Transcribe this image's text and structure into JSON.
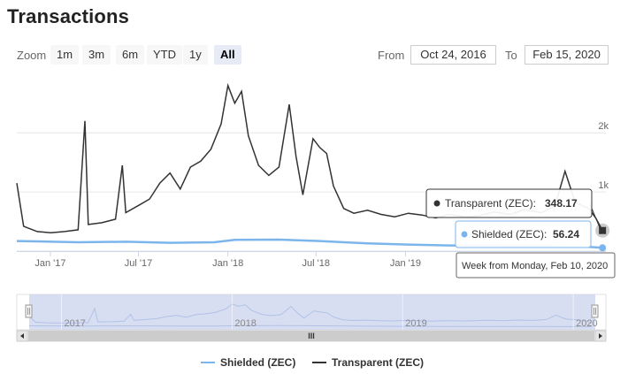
{
  "page_title": "Transactions",
  "toolbar": {
    "zoom_label": "Zoom",
    "zoom_buttons": [
      "1m",
      "3m",
      "6m",
      "YTD",
      "1y",
      "All"
    ],
    "active_zoom": "All",
    "from_label": "From",
    "from_value": "Oct 24, 2016",
    "to_label": "To",
    "to_value": "Feb 15, 2020"
  },
  "tooltip": {
    "transparent_label": "Transparent (ZEC):",
    "transparent_value": "348.17",
    "shielded_label": "Shielded (ZEC):",
    "shielded_value": "56.24",
    "date_text": "Week from Monday, Feb 10, 2020"
  },
  "navigator": {
    "year_labels": [
      "2017",
      "2018",
      "2019",
      "2020"
    ],
    "scroll_grip": "III"
  },
  "legend": [
    "Shielded (ZEC)",
    "Transparent (ZEC)"
  ],
  "colors": {
    "shielded": "#7cb5ec",
    "transparent": "#333333",
    "navigator_fill": "#c9d3ee",
    "grid": "#e6e6e6"
  },
  "chart_data": {
    "type": "line",
    "x_axis": {
      "type": "datetime",
      "tick_labels": [
        "Jan '17",
        "Jul '17",
        "Jan '18",
        "Jul '18",
        "Jan '19"
      ]
    },
    "y_axis": {
      "tick_labels": [
        "1k",
        "2k"
      ],
      "range": [
        0,
        2900
      ],
      "position": "right"
    },
    "grid": true,
    "legend_position": "bottom-center",
    "series": [
      {
        "name": "Transparent (ZEC)",
        "points": [
          [
            "2016-10-24",
            1150
          ],
          [
            "2016-11-07",
            420
          ],
          [
            "2016-12-05",
            330
          ],
          [
            "2017-01-02",
            310
          ],
          [
            "2017-01-30",
            330
          ],
          [
            "2017-02-27",
            360
          ],
          [
            "2017-03-13",
            2200
          ],
          [
            "2017-03-20",
            450
          ],
          [
            "2017-04-17",
            480
          ],
          [
            "2017-05-15",
            540
          ],
          [
            "2017-05-29",
            1450
          ],
          [
            "2017-06-05",
            650
          ],
          [
            "2017-07-03",
            780
          ],
          [
            "2017-07-24",
            880
          ],
          [
            "2017-08-14",
            1150
          ],
          [
            "2017-09-04",
            1320
          ],
          [
            "2017-09-25",
            1050
          ],
          [
            "2017-10-16",
            1420
          ],
          [
            "2017-11-06",
            1520
          ],
          [
            "2017-11-27",
            1720
          ],
          [
            "2017-12-18",
            2150
          ],
          [
            "2018-01-01",
            2800
          ],
          [
            "2018-01-15",
            2500
          ],
          [
            "2018-01-29",
            2700
          ],
          [
            "2018-02-12",
            1950
          ],
          [
            "2018-03-05",
            1450
          ],
          [
            "2018-03-26",
            1280
          ],
          [
            "2018-04-16",
            1420
          ],
          [
            "2018-05-07",
            2480
          ],
          [
            "2018-05-21",
            1600
          ],
          [
            "2018-06-04",
            950
          ],
          [
            "2018-06-25",
            1900
          ],
          [
            "2018-07-09",
            1750
          ],
          [
            "2018-07-23",
            1650
          ],
          [
            "2018-08-06",
            1100
          ],
          [
            "2018-08-27",
            720
          ],
          [
            "2018-09-17",
            640
          ],
          [
            "2018-10-15",
            690
          ],
          [
            "2018-11-12",
            620
          ],
          [
            "2018-12-10",
            580
          ],
          [
            "2019-01-07",
            640
          ],
          [
            "2019-02-04",
            610
          ],
          [
            "2019-03-04",
            560
          ],
          [
            "2019-04-01",
            620
          ],
          [
            "2019-05-06",
            580
          ],
          [
            "2019-06-03",
            600
          ],
          [
            "2019-07-01",
            660
          ],
          [
            "2019-08-05",
            620
          ],
          [
            "2019-09-02",
            700
          ],
          [
            "2019-10-07",
            650
          ],
          [
            "2019-11-04",
            760
          ],
          [
            "2019-11-25",
            1350
          ],
          [
            "2019-12-16",
            820
          ],
          [
            "2020-01-13",
            720
          ],
          [
            "2020-01-27",
            560
          ],
          [
            "2020-02-10",
            348.17
          ]
        ]
      },
      {
        "name": "Shielded (ZEC)",
        "points": [
          [
            "2016-10-24",
            170
          ],
          [
            "2016-12-05",
            165
          ],
          [
            "2017-02-27",
            150
          ],
          [
            "2017-06-05",
            158
          ],
          [
            "2017-09-04",
            140
          ],
          [
            "2017-12-04",
            150
          ],
          [
            "2018-01-15",
            190
          ],
          [
            "2018-04-16",
            195
          ],
          [
            "2018-07-09",
            170
          ],
          [
            "2018-10-15",
            130
          ],
          [
            "2019-01-07",
            110
          ],
          [
            "2019-04-01",
            95
          ],
          [
            "2019-07-01",
            90
          ],
          [
            "2019-10-07",
            85
          ],
          [
            "2020-01-13",
            70
          ],
          [
            "2020-02-10",
            56.24
          ]
        ]
      }
    ]
  }
}
